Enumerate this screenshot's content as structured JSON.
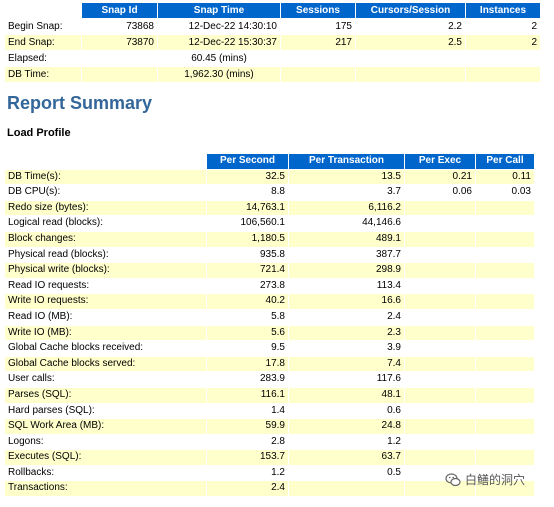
{
  "snap_table": {
    "headers": [
      "",
      "Snap Id",
      "Snap Time",
      "Sessions",
      "Cursors/Session",
      "Instances"
    ],
    "rows": [
      {
        "label": "Begin Snap:",
        "snap_id": "73868",
        "snap_time": "12-Dec-22 14:30:10",
        "sessions": "175",
        "cursors": "2.2",
        "instances": "2"
      },
      {
        "label": "End Snap:",
        "snap_id": "73870",
        "snap_time": "12-Dec-22 15:30:37",
        "sessions": "217",
        "cursors": "2.5",
        "instances": "2"
      },
      {
        "label": "Elapsed:",
        "snap_id": "",
        "snap_time": "60.45 (mins)",
        "sessions": "",
        "cursors": "",
        "instances": ""
      },
      {
        "label": "DB Time:",
        "snap_id": "",
        "snap_time": "1,962.30 (mins)",
        "sessions": "",
        "cursors": "",
        "instances": ""
      }
    ]
  },
  "report_summary_title": "Report Summary",
  "load_profile_title": "Load Profile",
  "load_profile": {
    "headers": [
      "",
      "Per Second",
      "Per Transaction",
      "Per Exec",
      "Per Call"
    ],
    "rows": [
      {
        "label": "DB Time(s):",
        "per_second": "32.5",
        "per_transaction": "13.5",
        "per_exec": "0.21",
        "per_call": "0.11"
      },
      {
        "label": "DB CPU(s):",
        "per_second": "8.8",
        "per_transaction": "3.7",
        "per_exec": "0.06",
        "per_call": "0.03"
      },
      {
        "label": "Redo size (bytes):",
        "per_second": "14,763.1",
        "per_transaction": "6,116.2",
        "per_exec": "",
        "per_call": ""
      },
      {
        "label": "Logical read (blocks):",
        "per_second": "106,560.1",
        "per_transaction": "44,146.6",
        "per_exec": "",
        "per_call": ""
      },
      {
        "label": "Block changes:",
        "per_second": "1,180.5",
        "per_transaction": "489.1",
        "per_exec": "",
        "per_call": ""
      },
      {
        "label": "Physical read (blocks):",
        "per_second": "935.8",
        "per_transaction": "387.7",
        "per_exec": "",
        "per_call": ""
      },
      {
        "label": "Physical write (blocks):",
        "per_second": "721.4",
        "per_transaction": "298.9",
        "per_exec": "",
        "per_call": ""
      },
      {
        "label": "Read IO requests:",
        "per_second": "273.8",
        "per_transaction": "113.4",
        "per_exec": "",
        "per_call": ""
      },
      {
        "label": "Write IO requests:",
        "per_second": "40.2",
        "per_transaction": "16.6",
        "per_exec": "",
        "per_call": ""
      },
      {
        "label": "Read IO (MB):",
        "per_second": "5.8",
        "per_transaction": "2.4",
        "per_exec": "",
        "per_call": ""
      },
      {
        "label": "Write IO (MB):",
        "per_second": "5.6",
        "per_transaction": "2.3",
        "per_exec": "",
        "per_call": ""
      },
      {
        "label": "Global Cache blocks received:",
        "per_second": "9.5",
        "per_transaction": "3.9",
        "per_exec": "",
        "per_call": ""
      },
      {
        "label": "Global Cache blocks served:",
        "per_second": "17.8",
        "per_transaction": "7.4",
        "per_exec": "",
        "per_call": ""
      },
      {
        "label": "User calls:",
        "per_second": "283.9",
        "per_transaction": "117.6",
        "per_exec": "",
        "per_call": ""
      },
      {
        "label": "Parses (SQL):",
        "per_second": "116.1",
        "per_transaction": "48.1",
        "per_exec": "",
        "per_call": ""
      },
      {
        "label": "Hard parses (SQL):",
        "per_second": "1.4",
        "per_transaction": "0.6",
        "per_exec": "",
        "per_call": ""
      },
      {
        "label": "SQL Work Area (MB):",
        "per_second": "59.9",
        "per_transaction": "24.8",
        "per_exec": "",
        "per_call": ""
      },
      {
        "label": "Logons:",
        "per_second": "2.8",
        "per_transaction": "1.2",
        "per_exec": "",
        "per_call": ""
      },
      {
        "label": "Executes (SQL):",
        "per_second": "153.7",
        "per_transaction": "63.7",
        "per_exec": "",
        "per_call": ""
      },
      {
        "label": "Rollbacks:",
        "per_second": "1.2",
        "per_transaction": "0.5",
        "per_exec": "",
        "per_call": ""
      },
      {
        "label": "Transactions:",
        "per_second": "2.4",
        "per_transaction": "",
        "per_exec": "",
        "per_call": ""
      }
    ]
  },
  "watermark": {
    "text": "白鳝的洞穴",
    "icon": "wechat-icon"
  },
  "colors": {
    "header_bg": "#0066cc",
    "row_shade": "#ffffcc",
    "title": "#336699"
  }
}
